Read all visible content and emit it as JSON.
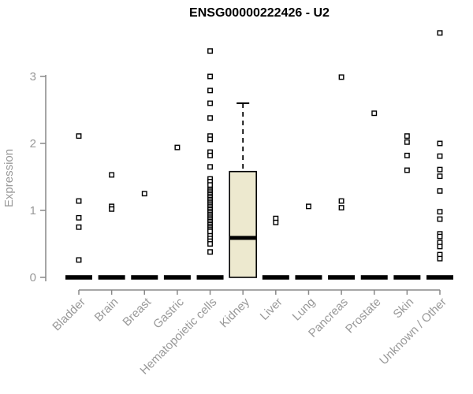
{
  "title": "ENSG00000222426 - U2",
  "chart_data": {
    "type": "boxplot",
    "title": "ENSG00000222426 - U2",
    "xlabel": "",
    "ylabel": "Expression",
    "ylim": [
      0,
      3
    ],
    "yticks": [
      "0",
      "1",
      "2",
      "3"
    ],
    "grid": false,
    "legend": "none",
    "categories": [
      "Bladder",
      "Brain",
      "Breast",
      "Gastric",
      "Hematopoietic cells",
      "Kidney",
      "Liver",
      "Lung",
      "Pancreas",
      "Prostate",
      "Skin",
      "Unknown / Other"
    ],
    "boxes": [
      {
        "category": "Bladder",
        "whisker_low": 0,
        "q1": 0,
        "median": 0,
        "q3": 0,
        "whisker_high": 0,
        "outliers": [
          2.11,
          1.14,
          0.89,
          0.75,
          0.26
        ]
      },
      {
        "category": "Brain",
        "whisker_low": 0,
        "q1": 0,
        "median": 0,
        "q3": 0,
        "whisker_high": 0,
        "outliers": [
          1.53,
          1.06,
          1.02
        ]
      },
      {
        "category": "Breast",
        "whisker_low": 0,
        "q1": 0,
        "median": 0,
        "q3": 0,
        "whisker_high": 0,
        "outliers": [
          1.25
        ]
      },
      {
        "category": "Gastric",
        "whisker_low": 0,
        "q1": 0,
        "median": 0,
        "q3": 0,
        "whisker_high": 0,
        "outliers": [
          1.94
        ]
      },
      {
        "category": "Hematopoietic cells",
        "whisker_low": 0,
        "q1": 0,
        "median": 0,
        "q3": 0,
        "whisker_high": 0,
        "outliers": [
          3.38,
          3.0,
          2.79,
          2.6,
          2.38,
          2.11,
          2.06,
          1.87,
          1.82,
          1.65,
          1.47,
          1.43,
          1.38,
          1.31,
          1.285,
          1.26,
          1.235,
          1.21,
          1.185,
          1.16,
          1.135,
          1.11,
          1.085,
          1.06,
          1.035,
          1.01,
          0.985,
          0.96,
          0.935,
          0.91,
          0.885,
          0.86,
          0.835,
          0.81,
          0.785,
          0.76,
          0.735,
          0.71,
          0.685,
          0.62,
          0.58,
          0.54,
          0.5,
          0.38
        ]
      },
      {
        "category": "Kidney",
        "whisker_low": 0,
        "q1": 0,
        "median": 0.59,
        "q3": 1.58,
        "whisker_high": 2.6,
        "outliers": []
      },
      {
        "category": "Liver",
        "whisker_low": 0,
        "q1": 0,
        "median": 0,
        "q3": 0,
        "whisker_high": 0,
        "outliers": [
          0.88,
          0.82
        ]
      },
      {
        "category": "Lung",
        "whisker_low": 0,
        "q1": 0,
        "median": 0,
        "q3": 0,
        "whisker_high": 0,
        "outliers": [
          1.06
        ]
      },
      {
        "category": "Pancreas",
        "whisker_low": 0,
        "q1": 0,
        "median": 0,
        "q3": 0,
        "whisker_high": 0,
        "outliers": [
          2.99,
          1.14,
          1.04
        ]
      },
      {
        "category": "Prostate",
        "whisker_low": 0,
        "q1": 0,
        "median": 0,
        "q3": 0,
        "whisker_high": 0,
        "outliers": [
          2.45
        ]
      },
      {
        "category": "Skin",
        "whisker_low": 0,
        "q1": 0,
        "median": 0,
        "q3": 0,
        "whisker_high": 0,
        "outliers": [
          2.11,
          2.02,
          1.82,
          1.6
        ]
      },
      {
        "category": "Unknown / Other",
        "whisker_low": 0,
        "q1": 0,
        "median": 0,
        "q3": 0,
        "whisker_high": 0,
        "outliers": [
          3.65,
          2.0,
          1.81,
          1.61,
          1.51,
          1.29,
          0.98,
          0.87,
          0.65,
          0.61,
          0.52,
          0.46,
          0.34,
          0.28
        ]
      }
    ],
    "colors": {
      "box_fill": "#ede9cf",
      "box_stroke": "#000000",
      "median": "#000000",
      "marker_stroke": "#000000",
      "marker_fill": "#ffffff",
      "axis_line": "#888888",
      "tick_text": "#999999",
      "title_text": "#000000",
      "background": "#ffffff"
    }
  }
}
